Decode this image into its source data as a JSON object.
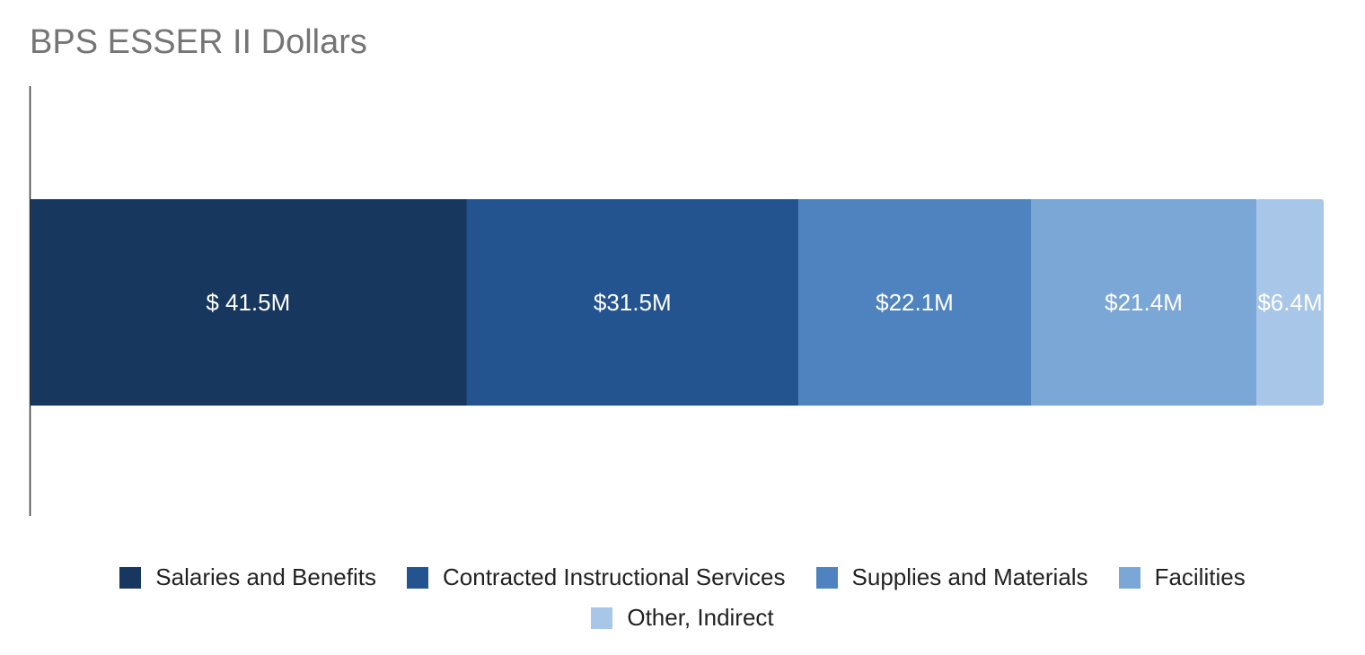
{
  "chart_data": {
    "type": "bar",
    "orientation": "horizontal",
    "stacked": true,
    "title": "BPS ESSER II Dollars",
    "categories": [
      ""
    ],
    "series": [
      {
        "name": "Salaries and Benefits",
        "values": [
          41.5
        ],
        "label": "$ 41.5M",
        "color": "#17375e"
      },
      {
        "name": "Contracted Instructional Services",
        "values": [
          31.5
        ],
        "label": "$31.5M",
        "color": "#24548f"
      },
      {
        "name": "Supplies and Materials",
        "values": [
          22.1
        ],
        "label": "$22.1M",
        "color": "#4f83c0"
      },
      {
        "name": "Facilities",
        "values": [
          21.4
        ],
        "label": "$21.4M",
        "color": "#7ba7d7"
      },
      {
        "name": "Other, Indirect",
        "values": [
          6.4
        ],
        "label": "$6.4M",
        "color": "#a8c6e8"
      }
    ],
    "xlabel": "",
    "ylabel": "",
    "grid": false,
    "legend": "bottom"
  }
}
